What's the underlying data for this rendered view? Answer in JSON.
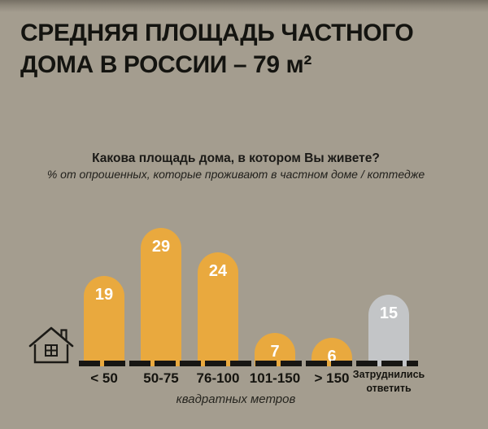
{
  "header": {
    "title_line1": "СРЕДНЯЯ ПЛОЩАДЬ ЧАСТНОГО",
    "title_line2": "ДОМА В РОССИИ – 79 м²"
  },
  "chart": {
    "question": "Какова площадь дома, в котором Вы живете?",
    "subtitle": "% от опрошенных, которые проживают в частном доме / коттедже",
    "xlabel": "квадратных метров"
  },
  "chart_data": {
    "type": "bar",
    "title": "Какова площадь дома, в котором Вы живете?",
    "subtitle": "% от опрошенных, которые проживают в частном доме / коттедже",
    "categories": [
      "< 50",
      "50-75",
      "76-100",
      "101-150",
      "> 150",
      "Затруднились ответить"
    ],
    "values": [
      19,
      29,
      24,
      7,
      6,
      15
    ],
    "bar_colors": [
      "#E9A93E",
      "#E9A93E",
      "#E9A93E",
      "#E9A93E",
      "#E9A93E",
      "#C3C5C7"
    ],
    "value_label_color": "#FFFFFF",
    "xlabel": "квадратных метров",
    "ylabel": "",
    "ylim": [
      0,
      30
    ],
    "grid": false,
    "legend": false,
    "value_label_position": "inside-top"
  },
  "icons": {
    "house": "house-icon"
  },
  "colors": {
    "background": "#A49D8F",
    "bar": "#E9A93E",
    "bar_no_answer": "#C3C5C7",
    "title_text": "#141410",
    "axis_line": "#171613",
    "value_text": "#FFFFFF"
  }
}
